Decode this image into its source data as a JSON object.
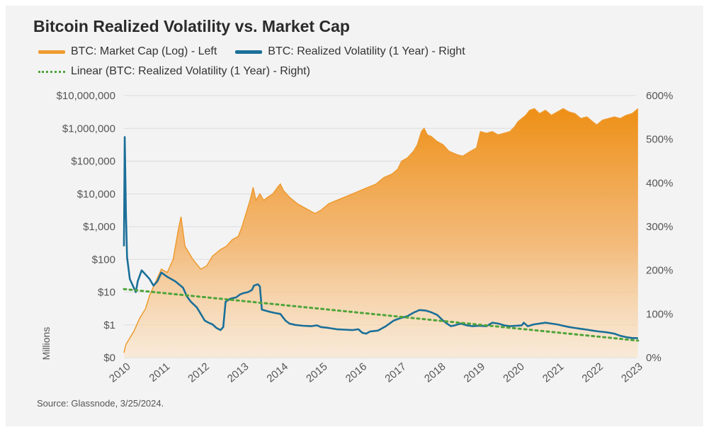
{
  "chart_data": {
    "type": "area+line",
    "title": "Bitcoin Realized Volatility vs. Market Cap",
    "legend": [
      {
        "label": "BTC: Market Cap (Log) - Left",
        "color": "#ee9a2e",
        "style": "solid"
      },
      {
        "label": "BTC: Realized Volatility (1 Year) - Right",
        "color": "#1b6f98",
        "style": "solid"
      },
      {
        "label": "Linear (BTC: Realized Volatility (1 Year) - Right)",
        "color": "#4fa43a",
        "style": "dotted"
      }
    ],
    "x_ticks": [
      "2010",
      "2011",
      "2012",
      "2013",
      "2014",
      "2015",
      "2016",
      "2017",
      "2018",
      "2019",
      "2020",
      "2021",
      "2022",
      "2023"
    ],
    "xlim": [
      2010,
      2023
    ],
    "left_axis": {
      "unit_label": "Millions",
      "scale": "log",
      "ticks": [
        "$0",
        "$1",
        "$10",
        "$100",
        "$1,000",
        "$10,000",
        "$100,000",
        "$1,000,000",
        "$10,000,000"
      ],
      "range_log10": [
        -1,
        7
      ]
    },
    "right_axis": {
      "ticks": [
        "0%",
        "100%",
        "200%",
        "300%",
        "400%",
        "500%",
        "600%"
      ],
      "range": [
        0,
        600
      ]
    },
    "market_cap_log10": [
      [
        2010.0,
        -0.85
      ],
      [
        2010.05,
        -0.6
      ],
      [
        2010.15,
        -0.4
      ],
      [
        2010.25,
        -0.2
      ],
      [
        2010.4,
        0.2
      ],
      [
        2010.55,
        0.5
      ],
      [
        2010.65,
        0.9
      ],
      [
        2010.8,
        1.3
      ],
      [
        2010.95,
        1.7
      ],
      [
        2011.1,
        1.6
      ],
      [
        2011.25,
        2.0
      ],
      [
        2011.38,
        2.9
      ],
      [
        2011.45,
        3.3
      ],
      [
        2011.55,
        2.4
      ],
      [
        2011.75,
        2.0
      ],
      [
        2011.95,
        1.7
      ],
      [
        2012.1,
        1.8
      ],
      [
        2012.25,
        2.1
      ],
      [
        2012.45,
        2.3
      ],
      [
        2012.6,
        2.4
      ],
      [
        2012.75,
        2.6
      ],
      [
        2012.9,
        2.7
      ],
      [
        2013.0,
        3.0
      ],
      [
        2013.1,
        3.4
      ],
      [
        2013.2,
        3.8
      ],
      [
        2013.28,
        4.2
      ],
      [
        2013.35,
        3.8
      ],
      [
        2013.45,
        4.0
      ],
      [
        2013.55,
        3.8
      ],
      [
        2013.65,
        3.9
      ],
      [
        2013.78,
        4.0
      ],
      [
        2013.9,
        4.2
      ],
      [
        2013.97,
        4.3
      ],
      [
        2014.05,
        4.1
      ],
      [
        2014.2,
        3.9
      ],
      [
        2014.4,
        3.7
      ],
      [
        2014.55,
        3.6
      ],
      [
        2014.7,
        3.5
      ],
      [
        2014.85,
        3.4
      ],
      [
        2015.0,
        3.5
      ],
      [
        2015.2,
        3.7
      ],
      [
        2015.4,
        3.8
      ],
      [
        2015.6,
        3.9
      ],
      [
        2015.8,
        4.0
      ],
      [
        2016.0,
        4.1
      ],
      [
        2016.2,
        4.2
      ],
      [
        2016.4,
        4.3
      ],
      [
        2016.6,
        4.5
      ],
      [
        2016.8,
        4.6
      ],
      [
        2016.95,
        4.75
      ],
      [
        2017.05,
        5.0
      ],
      [
        2017.2,
        5.1
      ],
      [
        2017.35,
        5.3
      ],
      [
        2017.45,
        5.5
      ],
      [
        2017.55,
        5.9
      ],
      [
        2017.62,
        6.0
      ],
      [
        2017.7,
        5.8
      ],
      [
        2017.8,
        5.75
      ],
      [
        2017.95,
        5.6
      ],
      [
        2018.1,
        5.5
      ],
      [
        2018.25,
        5.3
      ],
      [
        2018.45,
        5.2
      ],
      [
        2018.6,
        5.15
      ],
      [
        2018.8,
        5.3
      ],
      [
        2018.95,
        5.4
      ],
      [
        2019.05,
        5.9
      ],
      [
        2019.2,
        5.85
      ],
      [
        2019.35,
        5.9
      ],
      [
        2019.5,
        5.8
      ],
      [
        2019.65,
        5.85
      ],
      [
        2019.8,
        5.9
      ],
      [
        2019.92,
        6.05
      ],
      [
        2020.0,
        6.2
      ],
      [
        2020.1,
        6.3
      ],
      [
        2020.2,
        6.4
      ],
      [
        2020.3,
        6.55
      ],
      [
        2020.42,
        6.6
      ],
      [
        2020.55,
        6.45
      ],
      [
        2020.7,
        6.55
      ],
      [
        2020.85,
        6.4
      ],
      [
        2021.0,
        6.5
      ],
      [
        2021.15,
        6.6
      ],
      [
        2021.3,
        6.5
      ],
      [
        2021.45,
        6.45
      ],
      [
        2021.6,
        6.3
      ],
      [
        2021.75,
        6.35
      ],
      [
        2021.9,
        6.2
      ],
      [
        2022.0,
        6.1
      ],
      [
        2022.15,
        6.25
      ],
      [
        2022.3,
        6.3
      ],
      [
        2022.45,
        6.35
      ],
      [
        2022.6,
        6.3
      ],
      [
        2022.75,
        6.4
      ],
      [
        2022.9,
        6.45
      ],
      [
        2023.0,
        6.55
      ],
      [
        2023.05,
        6.6
      ]
    ],
    "volatility_pct": [
      [
        2010.0,
        255
      ],
      [
        2010.02,
        505
      ],
      [
        2010.05,
        330
      ],
      [
        2010.08,
        230
      ],
      [
        2010.15,
        180
      ],
      [
        2010.25,
        160
      ],
      [
        2010.3,
        150
      ],
      [
        2010.35,
        175
      ],
      [
        2010.45,
        200
      ],
      [
        2010.55,
        190
      ],
      [
        2010.65,
        180
      ],
      [
        2010.75,
        165
      ],
      [
        2010.85,
        175
      ],
      [
        2010.95,
        195
      ],
      [
        2011.1,
        185
      ],
      [
        2011.3,
        175
      ],
      [
        2011.5,
        160
      ],
      [
        2011.6,
        140
      ],
      [
        2011.7,
        128
      ],
      [
        2011.85,
        115
      ],
      [
        2011.95,
        100
      ],
      [
        2012.05,
        85
      ],
      [
        2012.15,
        80
      ],
      [
        2012.25,
        76
      ],
      [
        2012.35,
        68
      ],
      [
        2012.45,
        63
      ],
      [
        2012.52,
        70
      ],
      [
        2012.58,
        128
      ],
      [
        2012.7,
        135
      ],
      [
        2012.85,
        138
      ],
      [
        2012.95,
        145
      ],
      [
        2013.05,
        148
      ],
      [
        2013.15,
        150
      ],
      [
        2013.25,
        155
      ],
      [
        2013.3,
        165
      ],
      [
        2013.4,
        168
      ],
      [
        2013.45,
        163
      ],
      [
        2013.5,
        110
      ],
      [
        2013.7,
        105
      ],
      [
        2013.85,
        102
      ],
      [
        2013.97,
        100
      ],
      [
        2014.1,
        85
      ],
      [
        2014.2,
        78
      ],
      [
        2014.35,
        75
      ],
      [
        2014.55,
        73
      ],
      [
        2014.75,
        72
      ],
      [
        2014.9,
        74
      ],
      [
        2015.0,
        70
      ],
      [
        2015.2,
        68
      ],
      [
        2015.4,
        65
      ],
      [
        2015.6,
        64
      ],
      [
        2015.8,
        63
      ],
      [
        2015.95,
        65
      ],
      [
        2016.05,
        57
      ],
      [
        2016.15,
        55
      ],
      [
        2016.25,
        60
      ],
      [
        2016.45,
        62
      ],
      [
        2016.65,
        72
      ],
      [
        2016.85,
        85
      ],
      [
        2017.0,
        90
      ],
      [
        2017.2,
        95
      ],
      [
        2017.35,
        103
      ],
      [
        2017.5,
        109
      ],
      [
        2017.65,
        108
      ],
      [
        2017.8,
        104
      ],
      [
        2017.95,
        98
      ],
      [
        2018.1,
        85
      ],
      [
        2018.2,
        78
      ],
      [
        2018.3,
        72
      ],
      [
        2018.4,
        74
      ],
      [
        2018.55,
        78
      ],
      [
        2018.7,
        74
      ],
      [
        2018.85,
        72
      ],
      [
        2019.0,
        73
      ],
      [
        2019.2,
        72
      ],
      [
        2019.35,
        80
      ],
      [
        2019.5,
        78
      ],
      [
        2019.65,
        74
      ],
      [
        2019.8,
        72
      ],
      [
        2019.95,
        73
      ],
      [
        2020.1,
        74
      ],
      [
        2020.15,
        80
      ],
      [
        2020.25,
        72
      ],
      [
        2020.4,
        76
      ],
      [
        2020.55,
        78
      ],
      [
        2020.7,
        80
      ],
      [
        2020.85,
        78
      ],
      [
        2021.0,
        76
      ],
      [
        2021.15,
        73
      ],
      [
        2021.3,
        70
      ],
      [
        2021.45,
        68
      ],
      [
        2021.6,
        66
      ],
      [
        2021.75,
        64
      ],
      [
        2021.9,
        62
      ],
      [
        2022.05,
        60
      ],
      [
        2022.25,
        58
      ],
      [
        2022.45,
        55
      ],
      [
        2022.6,
        50
      ],
      [
        2022.75,
        47
      ],
      [
        2022.9,
        45
      ],
      [
        2023.0,
        45
      ],
      [
        2023.05,
        44
      ]
    ],
    "linear_trend_pct": [
      [
        2010.0,
        157
      ],
      [
        2023.05,
        39
      ]
    ]
  },
  "source": "Source: Glassnode, 3/25/2024."
}
